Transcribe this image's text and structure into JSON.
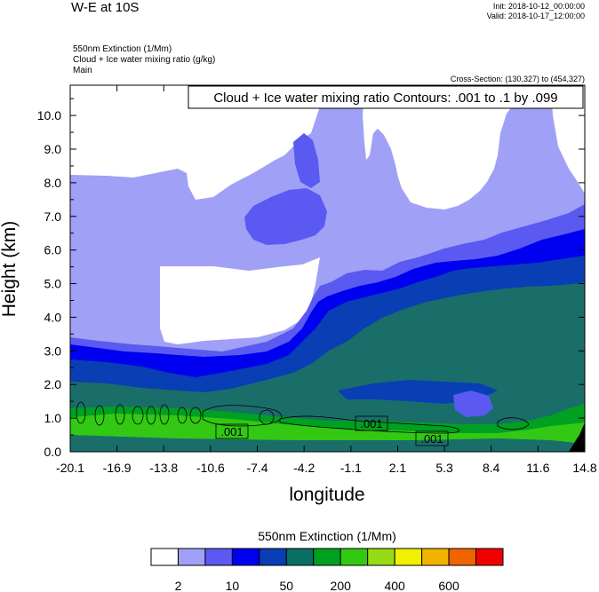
{
  "header": {
    "title": "W-E at 10S",
    "init": "Init: 2018-10-12_00:00:00",
    "valid": "Valid: 2018-10-17_12:00:00",
    "field_line_1": "550nm Extinction   (1/Mm)",
    "field_line_2": "Cloud + Ice water mixing ratio   (g/kg)",
    "field_line_3": "Main",
    "cross_section": "Cross-Section: (130,327) to (454,327)"
  },
  "chart_data": {
    "type": "heatmap",
    "title": "W-E at 10S",
    "xlabel": "longitude",
    "ylabel": "Height (km)",
    "xlim": [
      -20.1,
      14.8
    ],
    "ylim": [
      0.0,
      10.9
    ],
    "x_tick_labels": [
      "-20.1",
      "-16.9",
      "-13.8",
      "-10.6",
      "-7.4",
      "-4.2",
      "-1.1",
      "2.1",
      "5.3",
      "8.4",
      "11.6",
      "14.8"
    ],
    "y_tick_labels": [
      "0.0",
      "1.0",
      "2.0",
      "3.0",
      "4.0",
      "5.0",
      "6.0",
      "7.0",
      "8.0",
      "9.0",
      "10.0"
    ],
    "contour_title": "Cloud + Ice water mixing ratio Contours: .001 to .1 by .099",
    "contour_labels": [
      ".001",
      ".001",
      ".001"
    ],
    "colorbar": {
      "title": "550nm Extinction  (1/Mm)",
      "labels": [
        "2",
        "10",
        "50",
        "200",
        "400",
        "600"
      ],
      "colors": [
        "#ffffff",
        "#a0a0f6",
        "#5a5af2",
        "#0000f0",
        "#0a3eb4",
        "#0a6e64",
        "#00a020",
        "#32c814",
        "#96dc14",
        "#f0f000",
        "#f0b400",
        "#f06400",
        "#f00000"
      ]
    },
    "palette": {
      "c1": "#a0a0f6",
      "c2": "#5a5af2",
      "c3": "#0000f0",
      "c4": "#0a3eb4",
      "c5": "#1a6e6a",
      "c6": "#00a020",
      "c7": "#32c814"
    }
  }
}
